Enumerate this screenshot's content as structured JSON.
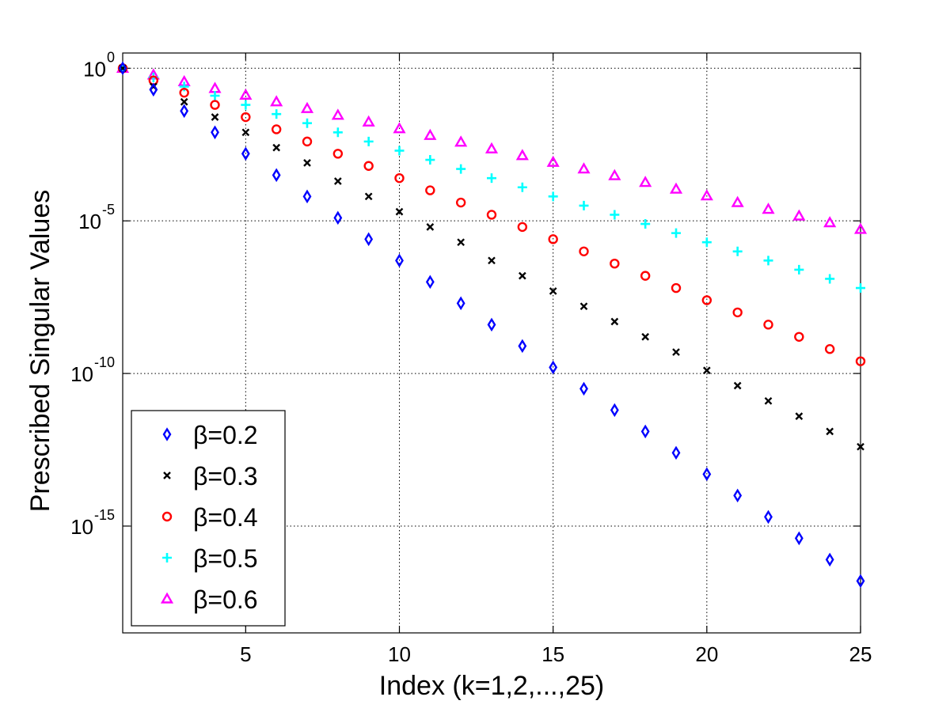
{
  "chart_data": {
    "type": "scatter",
    "title": "",
    "xlabel": "Index (k=1,2,...,25)",
    "ylabel": "Prescribed Singular Values",
    "x": [
      1,
      2,
      3,
      4,
      5,
      6,
      7,
      8,
      9,
      10,
      11,
      12,
      13,
      14,
      15,
      16,
      17,
      18,
      19,
      20,
      21,
      22,
      23,
      24,
      25
    ],
    "xlim": [
      1,
      25
    ],
    "ylim_log10": [
      -18.5,
      0.5
    ],
    "yscale": "log",
    "grid": true,
    "legend_position": "bottom-left",
    "x_ticks": [
      {
        "value": 5,
        "label": "5"
      },
      {
        "value": 10,
        "label": "10"
      },
      {
        "value": 15,
        "label": "15"
      },
      {
        "value": 20,
        "label": "20"
      },
      {
        "value": 25,
        "label": "25"
      }
    ],
    "y_ticks": [
      {
        "value_log10": 0,
        "base": "10",
        "exp": "0"
      },
      {
        "value_log10": -5,
        "base": "10",
        "exp": "-5"
      },
      {
        "value_log10": -10,
        "base": "10",
        "exp": "-10"
      },
      {
        "value_log10": -15,
        "base": "10",
        "exp": "-15"
      }
    ],
    "series": [
      {
        "name": "β=0.2",
        "beta": 0.2,
        "marker": "diamond",
        "color": "#0000ff",
        "log10_values": [
          0,
          -0.7,
          -1.4,
          -2.1,
          -2.8,
          -3.5,
          -4.2,
          -4.9,
          -5.6,
          -6.3,
          -7.0,
          -7.7,
          -8.4,
          -9.1,
          -9.8,
          -10.5,
          -11.2,
          -11.9,
          -12.6,
          -13.3,
          -14.0,
          -14.7,
          -15.4,
          -16.1,
          -16.8
        ]
      },
      {
        "name": "β=0.3",
        "beta": 0.3,
        "marker": "x",
        "color": "#000000",
        "log10_values": [
          0,
          -0.6,
          -1.1,
          -1.6,
          -2.1,
          -2.6,
          -3.1,
          -3.7,
          -4.2,
          -4.7,
          -5.2,
          -5.7,
          -6.3,
          -6.8,
          -7.3,
          -7.8,
          -8.3,
          -8.8,
          -9.3,
          -9.9,
          -10.4,
          -10.9,
          -11.4,
          -11.9,
          -12.4
        ]
      },
      {
        "name": "β=0.4",
        "beta": 0.4,
        "marker": "circle",
        "color": "#ff0000",
        "log10_values": [
          0,
          -0.4,
          -0.8,
          -1.2,
          -1.6,
          -2.0,
          -2.4,
          -2.8,
          -3.2,
          -3.6,
          -4.0,
          -4.4,
          -4.8,
          -5.2,
          -5.6,
          -6.0,
          -6.4,
          -6.8,
          -7.2,
          -7.6,
          -8.0,
          -8.4,
          -8.8,
          -9.2,
          -9.6
        ]
      },
      {
        "name": "β=0.5",
        "beta": 0.5,
        "marker": "plus",
        "color": "#00ffff",
        "log10_values": [
          0,
          -0.3,
          -0.6,
          -0.9,
          -1.2,
          -1.5,
          -1.8,
          -2.1,
          -2.4,
          -2.7,
          -3.0,
          -3.3,
          -3.6,
          -3.9,
          -4.2,
          -4.5,
          -4.8,
          -5.1,
          -5.4,
          -5.7,
          -6.0,
          -6.3,
          -6.6,
          -6.9,
          -7.2
        ]
      },
      {
        "name": "β=0.6",
        "beta": 0.6,
        "marker": "triangle",
        "color": "#ff00ff",
        "log10_values": [
          0,
          -0.22,
          -0.44,
          -0.66,
          -0.88,
          -1.1,
          -1.32,
          -1.54,
          -1.76,
          -1.98,
          -2.2,
          -2.42,
          -2.64,
          -2.86,
          -3.08,
          -3.3,
          -3.52,
          -3.74,
          -3.96,
          -4.18,
          -4.4,
          -4.62,
          -4.84,
          -5.06,
          -5.28
        ]
      }
    ]
  }
}
